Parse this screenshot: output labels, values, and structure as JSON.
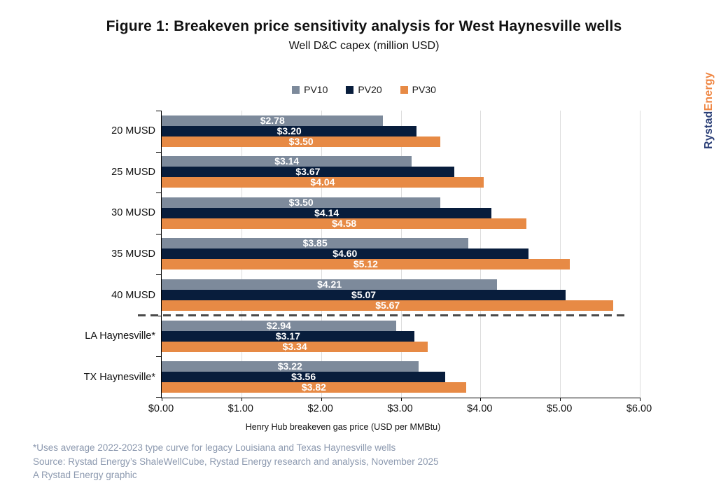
{
  "title": "Figure 1: Breakeven price sensitivity analysis for West Haynesville wells",
  "subtitle": "Well D&C capex (million USD)",
  "logo": {
    "rystad": "Rystad",
    "energy": "Energy",
    "rystad_color": "#2b3f77",
    "energy_color": "#ef8643"
  },
  "chart_data": {
    "type": "bar",
    "orientation": "horizontal",
    "title": "Figure 1: Breakeven price sensitivity analysis for West Haynesville wells",
    "subtitle": "Well D&C capex (million USD)",
    "categories": [
      "20 MUSD",
      "25 MUSD",
      "30 MUSD",
      "35 MUSD",
      "40 MUSD",
      "LA Haynesville*",
      "TX Haynesville*"
    ],
    "series": [
      {
        "name": "PV10",
        "color": "#7d8a9b",
        "values": [
          2.78,
          3.14,
          3.5,
          3.85,
          4.21,
          2.94,
          3.22
        ]
      },
      {
        "name": "PV20",
        "color": "#081d3c",
        "values": [
          3.2,
          3.67,
          4.14,
          4.6,
          5.07,
          3.17,
          3.56
        ]
      },
      {
        "name": "PV30",
        "color": "#e78a45",
        "values": [
          3.5,
          4.04,
          4.58,
          5.12,
          5.67,
          3.34,
          3.82
        ]
      }
    ],
    "value_label_prefix": "$",
    "xlabel": "Henry Hub breakeven gas price (USD per MMBtu)",
    "xlim": [
      0,
      6
    ],
    "xticks": [
      "$0.00",
      "$1.00",
      "$2.00",
      "$3.00",
      "$4.00",
      "$5.00",
      "$6.00"
    ],
    "grid": "vertical",
    "legend_position": "top-center",
    "separator_after_category_index": 4,
    "gridline_color": "#dcdcdc",
    "axis_color": "#000000",
    "separator_color": "#4a4a4a"
  },
  "footnotes": [
    "*Uses average 2022-2023 type curve for legacy Louisiana and Texas Haynesville wells",
    "Source: Rystad Energy’s ShaleWellCube, Rystad Energy research and analysis, November 2025",
    "A Rystad Energy graphic"
  ]
}
